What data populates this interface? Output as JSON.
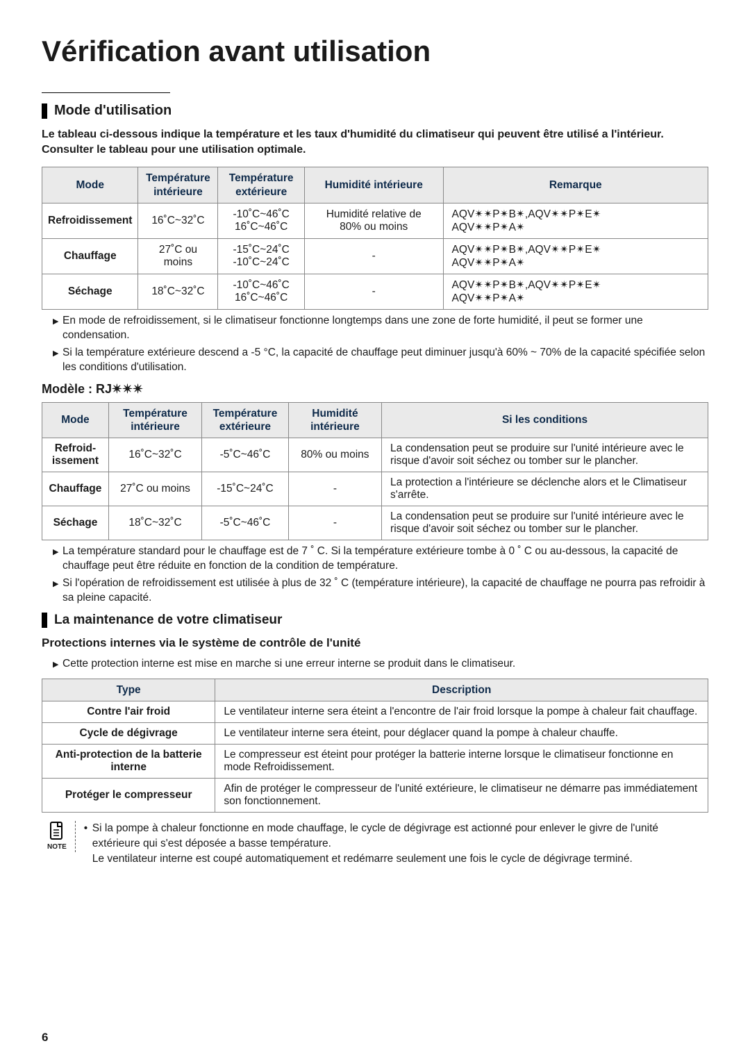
{
  "page_title": "Vérification avant utilisation",
  "page_number": "6",
  "section1": {
    "heading": "Mode d'utilisation",
    "intro": "Le tableau ci-dessous indique la température et les taux d'humidité du climatiseur qui peuvent être utilisé a l'intérieur. Consulter le tableau pour une utilisation optimale.",
    "table1": {
      "headers": [
        "Mode",
        "Température\nintérieure",
        "Température\nextérieure",
        "Humidité intérieure",
        "Remarque"
      ],
      "rows": [
        [
          "Refroidissement",
          "16˚C~32˚C",
          "-10˚C~46˚C\n16˚C~46˚C",
          "Humidité relative de\n80% ou moins",
          "AQV✴✴P✴B✴,AQV✴✴P✴E✴\nAQV✴✴P✴A✴"
        ],
        [
          "Chauffage",
          "27˚C ou moins",
          "-15˚C~24˚C\n-10˚C~24˚C",
          "-",
          "AQV✴✴P✴B✴,AQV✴✴P✴E✴\nAQV✴✴P✴A✴"
        ],
        [
          "Séchage",
          "18˚C~32˚C",
          "-10˚C~46˚C\n16˚C~46˚C",
          "-",
          "AQV✴✴P✴B✴,AQV✴✴P✴E✴\nAQV✴✴P✴A✴"
        ]
      ]
    },
    "notes1": [
      "En mode de refroidissement, si le climatiseur fonctionne longtemps dans une zone de forte humidité, il peut se former une condensation.",
      "Si la température extérieure descend a -5 °C, la capacité de chauffage peut diminuer jusqu'à 60% ~ 70% de la capacité spécifiée selon les conditions d'utilisation."
    ],
    "model_label": "Modèle : RJ✴✴✴",
    "table2": {
      "headers": [
        "Mode",
        "Température\nintérieure",
        "Température\nextérieure",
        "Humidité\nintérieure",
        "Si les conditions"
      ],
      "rows": [
        [
          "Refroid-\nissement",
          "16˚C~32˚C",
          "-5˚C~46˚C",
          "80% ou moins",
          "La condensation peut se produire sur l'unité intérieure avec le risque d'avoir soit séchez ou tomber sur le plancher."
        ],
        [
          "Chauffage",
          "27˚C ou moins",
          "-15˚C~24˚C",
          "-",
          "La protection a l'intérieure se déclenche alors et le Climatiseur s'arrête."
        ],
        [
          "Séchage",
          "18˚C~32˚C",
          "-5˚C~46˚C",
          "-",
          "La condensation peut se produire sur l'unité intérieure avec le risque d'avoir soit séchez ou tomber sur le plancher."
        ]
      ]
    },
    "notes2": [
      "La température standard pour le chauffage est de 7 ˚ C. Si la température extérieure tombe à 0 ˚ C ou au-dessous, la capacité de chauffage peut être réduite en fonction de la condition de température.",
      "Si l'opération de refroidissement est utilisée à plus de 32 ˚ C (température intérieure), la capacité de chauffage ne pourra pas refroidir à sa pleine capacité."
    ]
  },
  "section2": {
    "heading": "La maintenance de votre climatiseur",
    "sub": "Protections internes via le système de contrôle de l'unité",
    "intro_note": "Cette protection interne est mise en marche si une erreur interne se produit dans le climatiseur.",
    "table3": {
      "headers": [
        "Type",
        "Description"
      ],
      "rows": [
        [
          "Contre l'air froid",
          "Le ventilateur interne sera éteint a l'encontre de l'air froid lorsque la pompe à chaleur fait chauffage."
        ],
        [
          "Cycle de dégivrage",
          "Le ventilateur interne sera éteint, pour déglacer quand la pompe à chaleur chauffe."
        ],
        [
          "Anti-protection de la batterie\ninterne",
          "Le compresseur est éteint pour protéger la batterie interne lorsque le climatiseur fonctionne en mode Refroidissement."
        ],
        [
          "Protéger le compresseur",
          "Afin de protéger le compresseur de l'unité extérieure, le climatiseur ne démarre pas immédiatement son fonctionnement."
        ]
      ]
    },
    "note_label": "NOTE",
    "note_text": "Si la pompe à chaleur fonctionne en mode chauffage, le cycle de dégivrage est actionné pour enlever le givre de l'unité extérieure qui s'est déposée a basse température.\nLe ventilateur interne est coupé automatiquement et redémarre seulement une fois le cycle de dégivrage terminé."
  },
  "colors": {
    "header_bg": "#eaeaea",
    "header_text": "#0e2a4a",
    "border": "#888888",
    "text": "#1a1a1a"
  }
}
